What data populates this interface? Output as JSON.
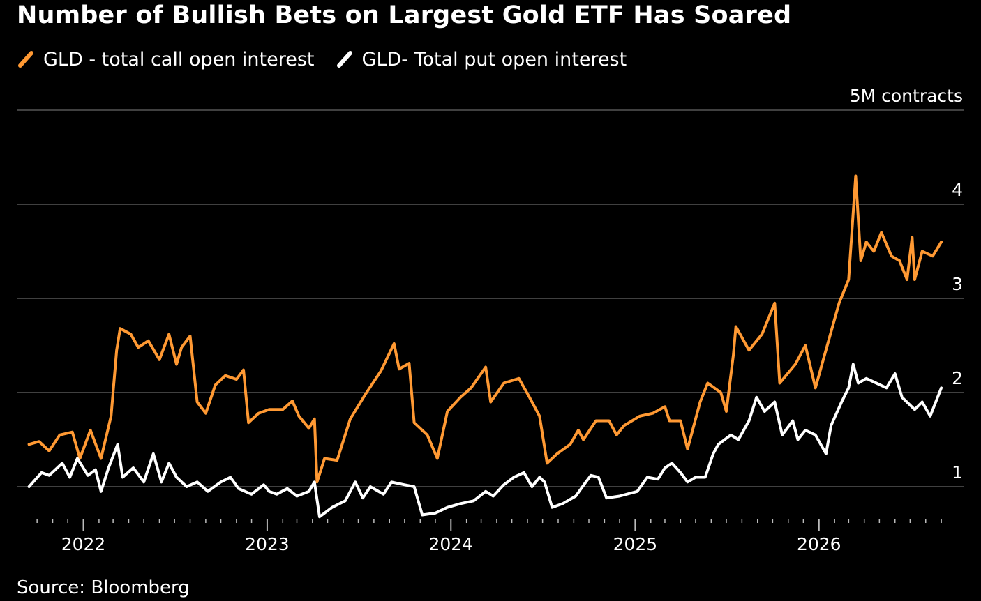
{
  "title": "Number of Bullish Bets on Largest Gold ETF Has Soared",
  "legend": {
    "call_label": "GLD - total call open interest",
    "put_label": "GLD- Total put open interest"
  },
  "source": "Source: Bloomberg",
  "colors": {
    "call": "#ff9933",
    "put": "#ffffff",
    "background": "#000000",
    "grid": "#555555"
  },
  "chart_data": {
    "type": "line",
    "title": "Number of Bullish Bets on Largest Gold ETF Has Soared",
    "y_unit_label": "5M contracts",
    "y_ticks": [
      1,
      2,
      3,
      4,
      5
    ],
    "y_tick_labels": [
      "1",
      "2",
      "3",
      "4",
      "5M contracts"
    ],
    "ylim": [
      0.6,
      5.1
    ],
    "x_ticks": [
      "2022-01-01",
      "2023-01-01",
      "2024-01-01",
      "2025-01-01",
      "2026-01-01"
    ],
    "x_tick_labels": [
      "2022",
      "2023",
      "2024",
      "2025",
      "2026"
    ],
    "xlim": [
      "2021-09-10",
      "2026-09-05"
    ],
    "grid": true,
    "legend_position": "top-left",
    "series": [
      {
        "name": "GLD - total call open interest",
        "color": "#ff9933",
        "points": [
          [
            "2021-09-15",
            1.45
          ],
          [
            "2021-10-05",
            1.48
          ],
          [
            "2021-10-25",
            1.38
          ],
          [
            "2021-11-15",
            1.55
          ],
          [
            "2021-12-10",
            1.58
          ],
          [
            "2021-12-25",
            1.3
          ],
          [
            "2022-01-15",
            1.6
          ],
          [
            "2022-02-05",
            1.3
          ],
          [
            "2022-02-25",
            1.75
          ],
          [
            "2022-03-08",
            2.45
          ],
          [
            "2022-03-15",
            2.68
          ],
          [
            "2022-04-05",
            2.62
          ],
          [
            "2022-04-20",
            2.48
          ],
          [
            "2022-05-10",
            2.55
          ],
          [
            "2022-06-01",
            2.35
          ],
          [
            "2022-06-20",
            2.62
          ],
          [
            "2022-07-05",
            2.3
          ],
          [
            "2022-07-15",
            2.48
          ],
          [
            "2022-08-01",
            2.6
          ],
          [
            "2022-08-15",
            1.9
          ],
          [
            "2022-09-01",
            1.78
          ],
          [
            "2022-09-20",
            2.08
          ],
          [
            "2022-10-10",
            2.18
          ],
          [
            "2022-11-01",
            2.14
          ],
          [
            "2022-11-15",
            2.24
          ],
          [
            "2022-11-25",
            1.68
          ],
          [
            "2022-12-15",
            1.78
          ],
          [
            "2023-01-05",
            1.82
          ],
          [
            "2023-02-01",
            1.82
          ],
          [
            "2023-02-20",
            1.91
          ],
          [
            "2023-03-05",
            1.75
          ],
          [
            "2023-03-25",
            1.62
          ],
          [
            "2023-04-05",
            1.72
          ],
          [
            "2023-04-10",
            1.05
          ],
          [
            "2023-04-25",
            1.3
          ],
          [
            "2023-05-20",
            1.28
          ],
          [
            "2023-06-15",
            1.72
          ],
          [
            "2023-07-15",
            1.98
          ],
          [
            "2023-08-15",
            2.23
          ],
          [
            "2023-09-10",
            2.52
          ],
          [
            "2023-09-20",
            2.25
          ],
          [
            "2023-10-10",
            2.31
          ],
          [
            "2023-10-20",
            1.68
          ],
          [
            "2023-11-15",
            1.55
          ],
          [
            "2023-12-05",
            1.3
          ],
          [
            "2023-12-25",
            1.8
          ],
          [
            "2024-01-20",
            1.95
          ],
          [
            "2024-02-10",
            2.05
          ],
          [
            "2024-03-10",
            2.27
          ],
          [
            "2024-03-20",
            1.9
          ],
          [
            "2024-04-15",
            2.1
          ],
          [
            "2024-05-15",
            2.15
          ],
          [
            "2024-06-05",
            1.95
          ],
          [
            "2024-06-25",
            1.75
          ],
          [
            "2024-07-10",
            1.25
          ],
          [
            "2024-07-30",
            1.35
          ],
          [
            "2024-08-25",
            1.45
          ],
          [
            "2024-09-10",
            1.6
          ],
          [
            "2024-09-20",
            1.5
          ],
          [
            "2024-10-15",
            1.7
          ],
          [
            "2024-11-10",
            1.7
          ],
          [
            "2024-11-25",
            1.55
          ],
          [
            "2024-12-10",
            1.65
          ],
          [
            "2025-01-10",
            1.75
          ],
          [
            "2025-02-05",
            1.78
          ],
          [
            "2025-03-01",
            1.85
          ],
          [
            "2025-03-10",
            1.7
          ],
          [
            "2025-04-01",
            1.7
          ],
          [
            "2025-04-15",
            1.4
          ],
          [
            "2025-05-10",
            1.9
          ],
          [
            "2025-05-25",
            2.1
          ],
          [
            "2025-06-20",
            2.0
          ],
          [
            "2025-07-01",
            1.8
          ],
          [
            "2025-07-15",
            2.4
          ],
          [
            "2025-07-20",
            2.7
          ],
          [
            "2025-08-15",
            2.45
          ],
          [
            "2025-09-10",
            2.62
          ],
          [
            "2025-10-05",
            2.95
          ],
          [
            "2025-10-15",
            2.1
          ],
          [
            "2025-11-15",
            2.3
          ],
          [
            "2025-12-05",
            2.5
          ],
          [
            "2025-12-25",
            2.05
          ],
          [
            "2026-01-20",
            2.55
          ],
          [
            "2026-02-10",
            2.95
          ],
          [
            "2026-03-01",
            3.2
          ],
          [
            "2026-03-15",
            4.3
          ],
          [
            "2026-03-25",
            3.4
          ],
          [
            "2026-04-05",
            3.6
          ],
          [
            "2026-04-20",
            3.5
          ],
          [
            "2026-05-05",
            3.7
          ],
          [
            "2026-05-25",
            3.45
          ],
          [
            "2026-06-10",
            3.4
          ],
          [
            "2026-06-25",
            3.2
          ],
          [
            "2026-07-05",
            3.65
          ],
          [
            "2026-07-10",
            3.2
          ],
          [
            "2026-07-25",
            3.5
          ],
          [
            "2026-08-15",
            3.45
          ],
          [
            "2026-09-01",
            3.6
          ]
        ]
      },
      {
        "name": "GLD- Total put open interest",
        "color": "#ffffff",
        "points": [
          [
            "2021-09-15",
            1.0
          ],
          [
            "2021-10-10",
            1.15
          ],
          [
            "2021-10-25",
            1.12
          ],
          [
            "2021-11-20",
            1.25
          ],
          [
            "2021-12-05",
            1.1
          ],
          [
            "2021-12-20",
            1.3
          ],
          [
            "2022-01-10",
            1.12
          ],
          [
            "2022-01-25",
            1.18
          ],
          [
            "2022-02-05",
            0.95
          ],
          [
            "2022-02-20",
            1.2
          ],
          [
            "2022-03-10",
            1.45
          ],
          [
            "2022-03-20",
            1.1
          ],
          [
            "2022-04-10",
            1.2
          ],
          [
            "2022-05-01",
            1.05
          ],
          [
            "2022-05-20",
            1.35
          ],
          [
            "2022-06-05",
            1.05
          ],
          [
            "2022-06-20",
            1.25
          ],
          [
            "2022-07-05",
            1.1
          ],
          [
            "2022-07-25",
            1.0
          ],
          [
            "2022-08-15",
            1.05
          ],
          [
            "2022-09-05",
            0.95
          ],
          [
            "2022-10-01",
            1.05
          ],
          [
            "2022-10-20",
            1.1
          ],
          [
            "2022-11-05",
            0.98
          ],
          [
            "2022-12-01",
            0.92
          ],
          [
            "2022-12-25",
            1.02
          ],
          [
            "2023-01-05",
            0.95
          ],
          [
            "2023-01-20",
            0.92
          ],
          [
            "2023-02-10",
            0.98
          ],
          [
            "2023-03-01",
            0.9
          ],
          [
            "2023-03-25",
            0.95
          ],
          [
            "2023-04-05",
            1.05
          ],
          [
            "2023-04-15",
            0.68
          ],
          [
            "2023-05-10",
            0.78
          ],
          [
            "2023-06-05",
            0.85
          ],
          [
            "2023-06-25",
            1.05
          ],
          [
            "2023-07-10",
            0.88
          ],
          [
            "2023-07-25",
            1.0
          ],
          [
            "2023-08-20",
            0.92
          ],
          [
            "2023-09-05",
            1.05
          ],
          [
            "2023-10-01",
            1.02
          ],
          [
            "2023-10-20",
            1.0
          ],
          [
            "2023-11-05",
            0.7
          ],
          [
            "2023-12-01",
            0.72
          ],
          [
            "2023-12-25",
            0.78
          ],
          [
            "2024-01-20",
            0.82
          ],
          [
            "2024-02-15",
            0.85
          ],
          [
            "2024-03-10",
            0.95
          ],
          [
            "2024-03-25",
            0.9
          ],
          [
            "2024-04-15",
            1.02
          ],
          [
            "2024-05-05",
            1.1
          ],
          [
            "2024-05-25",
            1.15
          ],
          [
            "2024-06-10",
            1.0
          ],
          [
            "2024-06-25",
            1.1
          ],
          [
            "2024-07-05",
            1.05
          ],
          [
            "2024-07-20",
            0.78
          ],
          [
            "2024-08-10",
            0.82
          ],
          [
            "2024-09-05",
            0.9
          ],
          [
            "2024-09-25",
            1.05
          ],
          [
            "2024-10-05",
            1.12
          ],
          [
            "2024-10-20",
            1.1
          ],
          [
            "2024-11-05",
            0.88
          ],
          [
            "2024-12-01",
            0.9
          ],
          [
            "2025-01-05",
            0.95
          ],
          [
            "2025-01-25",
            1.1
          ],
          [
            "2025-02-15",
            1.08
          ],
          [
            "2025-03-01",
            1.2
          ],
          [
            "2025-03-15",
            1.25
          ],
          [
            "2025-04-01",
            1.15
          ],
          [
            "2025-04-15",
            1.05
          ],
          [
            "2025-05-01",
            1.1
          ],
          [
            "2025-05-20",
            1.1
          ],
          [
            "2025-06-05",
            1.35
          ],
          [
            "2025-06-15",
            1.45
          ],
          [
            "2025-07-10",
            1.55
          ],
          [
            "2025-07-25",
            1.5
          ],
          [
            "2025-08-15",
            1.7
          ],
          [
            "2025-08-30",
            1.95
          ],
          [
            "2025-09-15",
            1.8
          ],
          [
            "2025-10-05",
            1.9
          ],
          [
            "2025-10-20",
            1.55
          ],
          [
            "2025-11-10",
            1.7
          ],
          [
            "2025-11-20",
            1.5
          ],
          [
            "2025-12-05",
            1.6
          ],
          [
            "2025-12-25",
            1.55
          ],
          [
            "2026-01-15",
            1.35
          ],
          [
            "2026-01-25",
            1.65
          ],
          [
            "2026-02-15",
            1.9
          ],
          [
            "2026-03-01",
            2.05
          ],
          [
            "2026-03-10",
            2.3
          ],
          [
            "2026-03-20",
            2.1
          ],
          [
            "2026-04-05",
            2.15
          ],
          [
            "2026-04-25",
            2.1
          ],
          [
            "2026-05-15",
            2.05
          ],
          [
            "2026-06-01",
            2.2
          ],
          [
            "2026-06-15",
            1.95
          ],
          [
            "2026-07-10",
            1.82
          ],
          [
            "2026-07-25",
            1.9
          ],
          [
            "2026-08-10",
            1.75
          ],
          [
            "2026-09-01",
            2.05
          ]
        ]
      }
    ]
  }
}
